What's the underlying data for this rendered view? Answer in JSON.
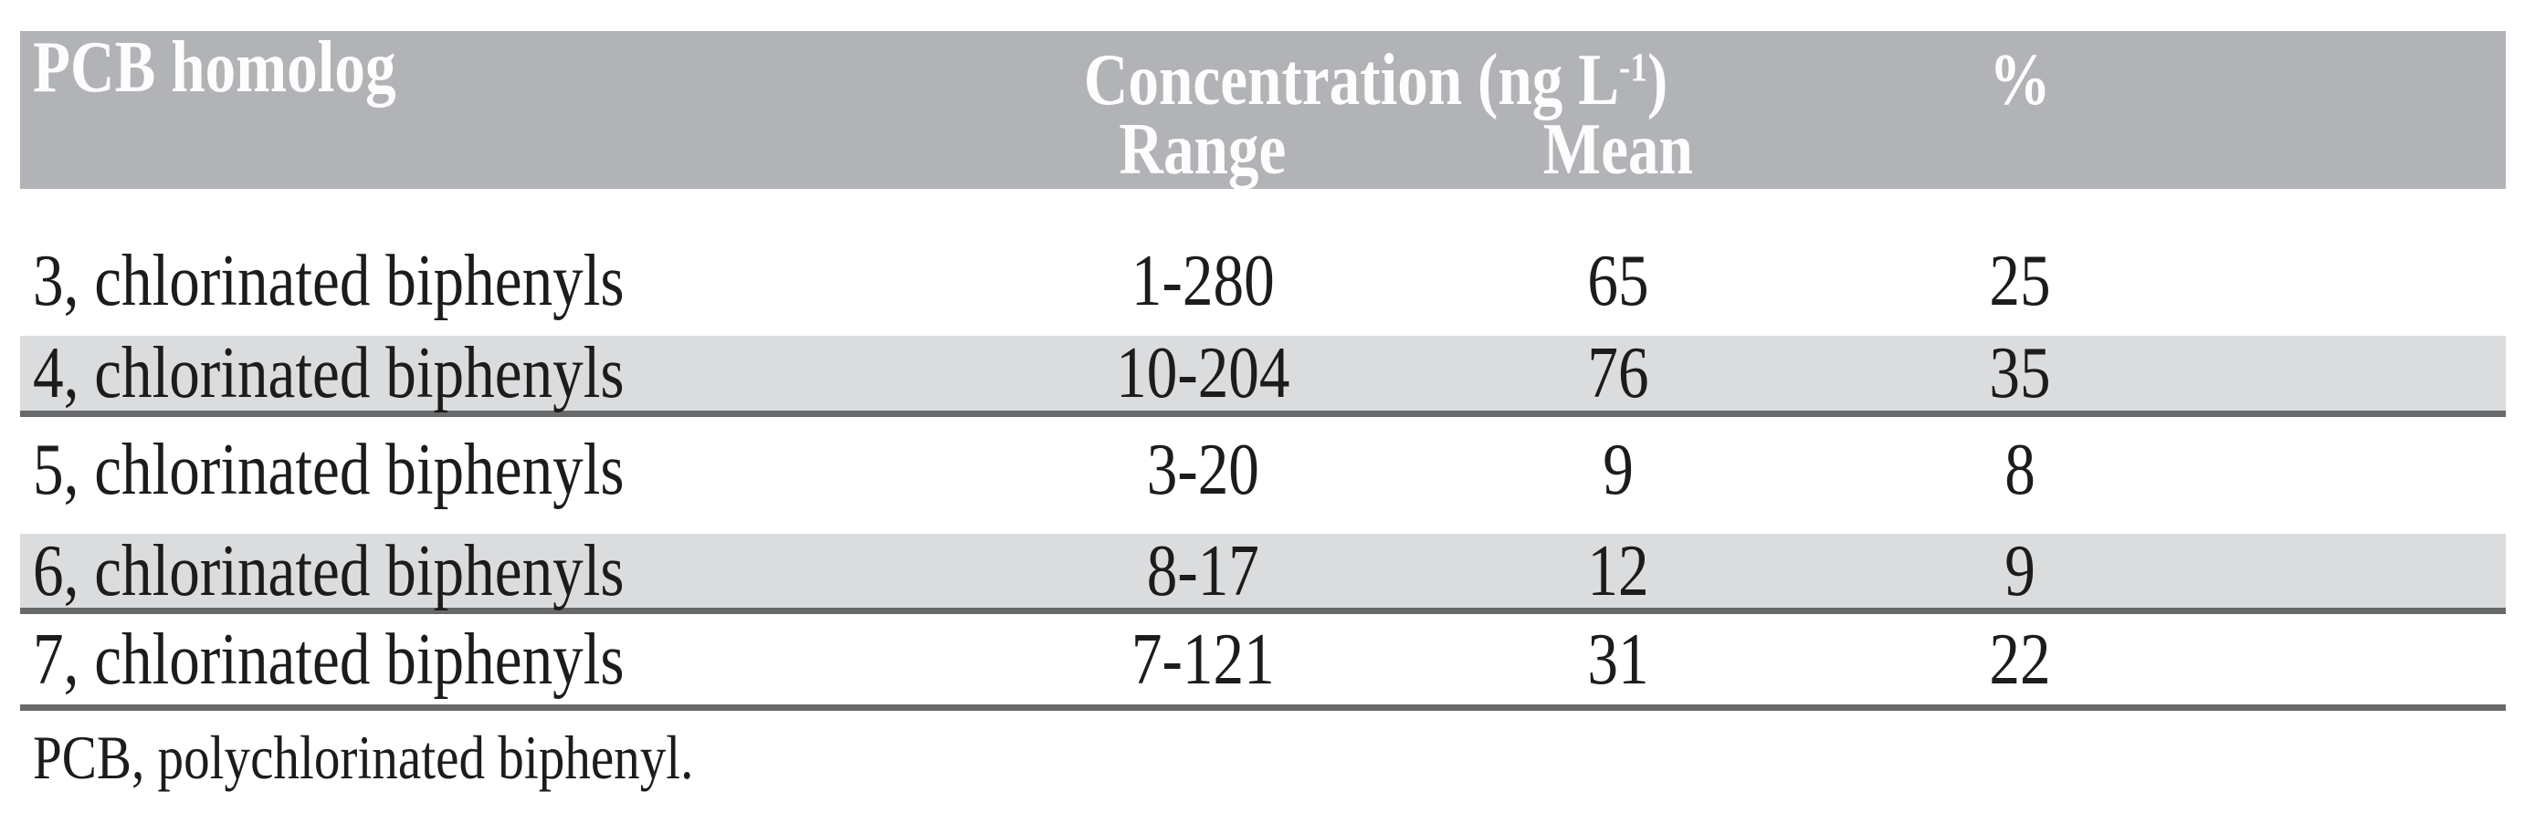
{
  "figure": {
    "header": {
      "homolog": "PCB homolog",
      "concentration_prefix": "Concentration (ng L",
      "concentration_superscript": "-1",
      "concentration_suffix": ")",
      "range": "Range",
      "mean": "Mean",
      "percent": "%"
    },
    "rows": [
      {
        "label": "3, chlorinated biphenyls",
        "range": "1-280",
        "mean": "65",
        "percent": "25"
      },
      {
        "label": "4, chlorinated biphenyls",
        "range": "10-204",
        "mean": "76",
        "percent": "35"
      },
      {
        "label": "5, chlorinated biphenyls",
        "range": "3-20",
        "mean": "9",
        "percent": "8"
      },
      {
        "label": "6, chlorinated biphenyls",
        "range": "8-17",
        "mean": "12",
        "percent": "9"
      },
      {
        "label": "7, chlorinated biphenyls",
        "range": "7-121",
        "mean": "31",
        "percent": "22"
      }
    ],
    "footnote": "PCB, polychlorinated biphenyl.",
    "colors": {
      "header_bg": "#b1b3b6",
      "header_text": "#fdfdfd",
      "alt_row_bg": "#dbdcde",
      "rule": "#67696b",
      "body_text": "#1c1c1c"
    }
  },
  "chart_data": {
    "type": "table",
    "columns": [
      "PCB homolog",
      "Concentration (ng L-1) Range",
      "Concentration (ng L-1) Mean",
      "%"
    ],
    "rows": [
      [
        "3, chlorinated biphenyls",
        "1-280",
        65,
        25
      ],
      [
        "4, chlorinated biphenyls",
        "10-204",
        76,
        35
      ],
      [
        "5, chlorinated biphenyls",
        "3-20",
        9,
        8
      ],
      [
        "6, chlorinated biphenyls",
        "8-17",
        12,
        9
      ],
      [
        "7, chlorinated biphenyls",
        "7-121",
        31,
        22
      ]
    ],
    "footnote": "PCB, polychlorinated biphenyl."
  }
}
